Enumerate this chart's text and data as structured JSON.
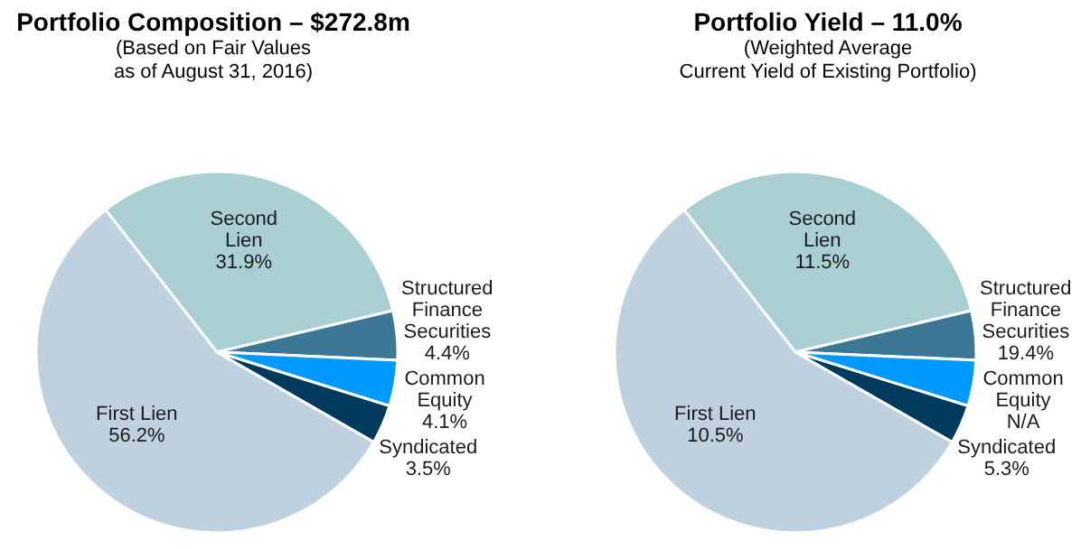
{
  "chart_data": [
    {
      "type": "pie",
      "title": "Portfolio Composition – $272.8m",
      "subtitle": "(Based on Fair Values\nas of August 31, 2016)",
      "categories": [
        "Second Lien",
        "Structured Finance Securities",
        "Common Equity",
        "Syndicated",
        "First Lien"
      ],
      "values": [
        31.9,
        4.4,
        4.1,
        3.5,
        56.2
      ],
      "value_labels": [
        "31.9%",
        "4.4%",
        "4.1%",
        "3.5%",
        "56.2%"
      ],
      "colors": [
        "#aacfd3",
        "#3d7796",
        "#0099ff",
        "#003a5d",
        "#bfd1df"
      ]
    },
    {
      "type": "pie",
      "title": "Portfolio Yield – 11.0%",
      "subtitle": "(Weighted Average\nCurrent Yield of Existing Portfolio)",
      "categories": [
        "Second Lien",
        "Structured Finance Securities",
        "Common Equity",
        "Syndicated",
        "First Lien"
      ],
      "values": [
        31.9,
        4.4,
        4.1,
        3.5,
        56.2
      ],
      "annotations": [
        {
          "text": "11.5%",
          "x": "Second Lien"
        },
        {
          "text": "19.4%",
          "x": "Structured Finance Securities"
        },
        {
          "text": "N/A",
          "x": "Common Equity"
        },
        {
          "text": "5.3%",
          "x": "Syndicated"
        },
        {
          "text": "10.5%",
          "x": "First Lien"
        }
      ],
      "colors": [
        "#aacfd3",
        "#3d7796",
        "#0099ff",
        "#003a5d",
        "#bfd1df"
      ]
    }
  ]
}
